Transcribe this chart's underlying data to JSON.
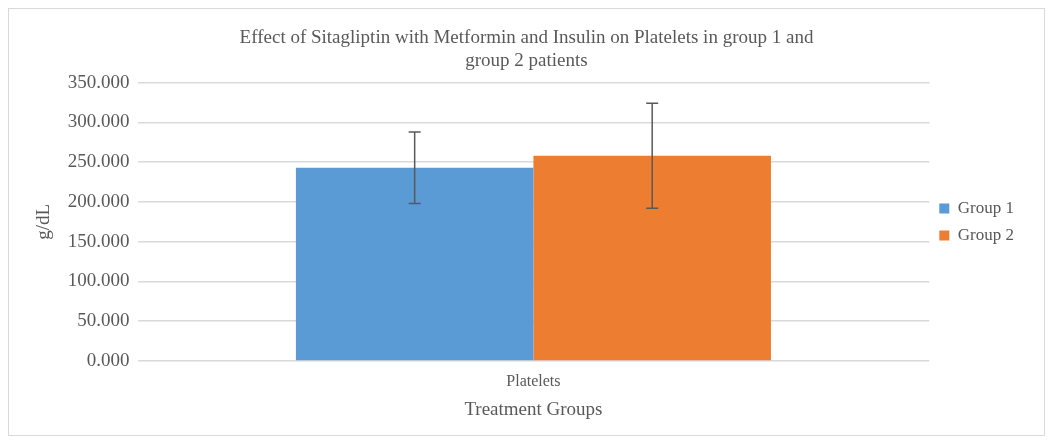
{
  "chart_data": {
    "type": "bar",
    "title": "Effect of Sitagliptin with Metformin and Insulin on Platelets in group 1 and group 2 patients",
    "xlabel": "Treatment Groups",
    "ylabel": "g/dL",
    "categories": [
      "Platelets"
    ],
    "series": [
      {
        "name": "Group 1",
        "color": "#5b9bd5",
        "values": [
          243
        ],
        "errors": [
          45
        ]
      },
      {
        "name": "Group 2",
        "color": "#ed7d31",
        "values": [
          258
        ],
        "errors": [
          66
        ]
      }
    ],
    "ylim": [
      0,
      350
    ],
    "yticks": [
      {
        "value": 0,
        "label": "0.000"
      },
      {
        "value": 50,
        "label": "50.000"
      },
      {
        "value": 100,
        "label": "100.000"
      },
      {
        "value": 150,
        "label": "150.000"
      },
      {
        "value": 200,
        "label": "200.000"
      },
      {
        "value": 250,
        "label": "250.000"
      },
      {
        "value": 300,
        "label": "300.000"
      },
      {
        "value": 350,
        "label": "350.000"
      }
    ],
    "grid": "y",
    "legend": "right"
  }
}
